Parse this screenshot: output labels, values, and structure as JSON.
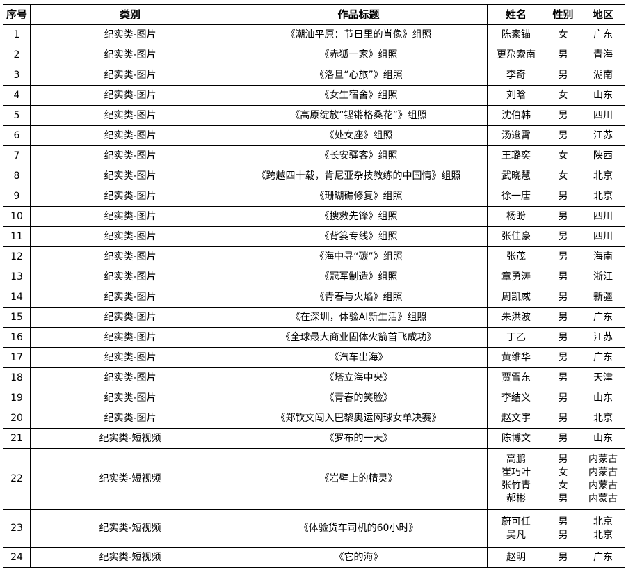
{
  "headers": [
    "序号",
    "类别",
    "作品标题",
    "姓名",
    "性别",
    "地区"
  ],
  "rows": [
    {
      "no": "1",
      "category": "纪实类-图片",
      "title": "《潮汕平原：节日里的肖像》组照",
      "names": [
        "陈素锚"
      ],
      "genders": [
        "女"
      ],
      "regions": [
        "广东"
      ]
    },
    {
      "no": "2",
      "category": "纪实类-图片",
      "title": "《赤狐一家》组照",
      "names": [
        "更尕索南"
      ],
      "genders": [
        "男"
      ],
      "regions": [
        "青海"
      ]
    },
    {
      "no": "3",
      "category": "纪实类-图片",
      "title": "《洛旦“心旅”》组照",
      "names": [
        "李奇"
      ],
      "genders": [
        "男"
      ],
      "regions": [
        "湖南"
      ]
    },
    {
      "no": "4",
      "category": "纪实类-图片",
      "title": "《女生宿舍》组照",
      "names": [
        "刘晗"
      ],
      "genders": [
        "女"
      ],
      "regions": [
        "山东"
      ]
    },
    {
      "no": "5",
      "category": "纪实类-图片",
      "title": "《高原绽放“铿锵格桑花”》组照",
      "names": [
        "沈伯韩"
      ],
      "genders": [
        "男"
      ],
      "regions": [
        "四川"
      ]
    },
    {
      "no": "6",
      "category": "纪实类-图片",
      "title": "《处女座》组照",
      "names": [
        "汤逡霄"
      ],
      "genders": [
        "男"
      ],
      "regions": [
        "江苏"
      ]
    },
    {
      "no": "7",
      "category": "纪实类-图片",
      "title": "《长安驿客》组照",
      "names": [
        "王璐奕"
      ],
      "genders": [
        "女"
      ],
      "regions": [
        "陕西"
      ]
    },
    {
      "no": "8",
      "category": "纪实类-图片",
      "title": "《跨越四十载，肯尼亚杂技教练的中国情》组照",
      "names": [
        "武晓慧"
      ],
      "genders": [
        "女"
      ],
      "regions": [
        "北京"
      ]
    },
    {
      "no": "9",
      "category": "纪实类-图片",
      "title": "《珊瑚礁修复》组照",
      "names": [
        "徐一唐"
      ],
      "genders": [
        "男"
      ],
      "regions": [
        "北京"
      ]
    },
    {
      "no": "10",
      "category": "纪实类-图片",
      "title": "《搜救先锋》组照",
      "names": [
        "杨盼"
      ],
      "genders": [
        "男"
      ],
      "regions": [
        "四川"
      ]
    },
    {
      "no": "11",
      "category": "纪实类-图片",
      "title": "《背篓专线》组照",
      "names": [
        "张佳豪"
      ],
      "genders": [
        "男"
      ],
      "regions": [
        "四川"
      ]
    },
    {
      "no": "12",
      "category": "纪实类-图片",
      "title": "《海中寻“碳”》组照",
      "names": [
        "张茂"
      ],
      "genders": [
        "男"
      ],
      "regions": [
        "海南"
      ]
    },
    {
      "no": "13",
      "category": "纪实类-图片",
      "title": "《冠军制造》组照",
      "names": [
        "章勇涛"
      ],
      "genders": [
        "男"
      ],
      "regions": [
        "浙江"
      ]
    },
    {
      "no": "14",
      "category": "纪实类-图片",
      "title": "《青春与火焰》组照",
      "names": [
        "周凯威"
      ],
      "genders": [
        "男"
      ],
      "regions": [
        "新疆"
      ]
    },
    {
      "no": "15",
      "category": "纪实类-图片",
      "title": "《在深圳，体验AI新生活》组照",
      "names": [
        "朱洪波"
      ],
      "genders": [
        "男"
      ],
      "regions": [
        "广东"
      ]
    },
    {
      "no": "16",
      "category": "纪实类-图片",
      "title": "《全球最大商业固体火箭首飞成功》",
      "names": [
        "丁乙"
      ],
      "genders": [
        "男"
      ],
      "regions": [
        "江苏"
      ]
    },
    {
      "no": "17",
      "category": "纪实类-图片",
      "title": "《汽车出海》",
      "names": [
        "黄维华"
      ],
      "genders": [
        "男"
      ],
      "regions": [
        "广东"
      ]
    },
    {
      "no": "18",
      "category": "纪实类-图片",
      "title": "《塔立海中央》",
      "names": [
        "贾雪东"
      ],
      "genders": [
        "男"
      ],
      "regions": [
        "天津"
      ]
    },
    {
      "no": "19",
      "category": "纪实类-图片",
      "title": "《青春的笑脸》",
      "names": [
        "李结义"
      ],
      "genders": [
        "男"
      ],
      "regions": [
        "山东"
      ]
    },
    {
      "no": "20",
      "category": "纪实类-图片",
      "title": "《郑钦文闯入巴黎奥运网球女单决赛》",
      "names": [
        "赵文宇"
      ],
      "genders": [
        "男"
      ],
      "regions": [
        "北京"
      ]
    },
    {
      "no": "21",
      "category": "纪实类-短视频",
      "title": "《罗布的一天》",
      "names": [
        "陈博文"
      ],
      "genders": [
        "男"
      ],
      "regions": [
        "山东"
      ]
    },
    {
      "no": "22",
      "category": "纪实类-短视频",
      "title": "《岩壁上的精灵》",
      "names": [
        "高鹏",
        "崔巧叶",
        "张竹青",
        "郝彬"
      ],
      "genders": [
        "男",
        "女",
        "女",
        "男"
      ],
      "regions": [
        "内蒙古",
        "内蒙古",
        "内蒙古",
        "内蒙古"
      ]
    },
    {
      "no": "23",
      "category": "纪实类-短视频",
      "title": "《体验货车司机的60小时》",
      "names": [
        "蔚可任",
        "吴凡"
      ],
      "genders": [
        "男",
        "男"
      ],
      "regions": [
        "北京",
        "北京"
      ]
    },
    {
      "no": "24",
      "category": "纪实类-短视频",
      "title": "《它的海》",
      "names": [
        "赵明"
      ],
      "genders": [
        "男"
      ],
      "regions": [
        "广东"
      ]
    }
  ]
}
